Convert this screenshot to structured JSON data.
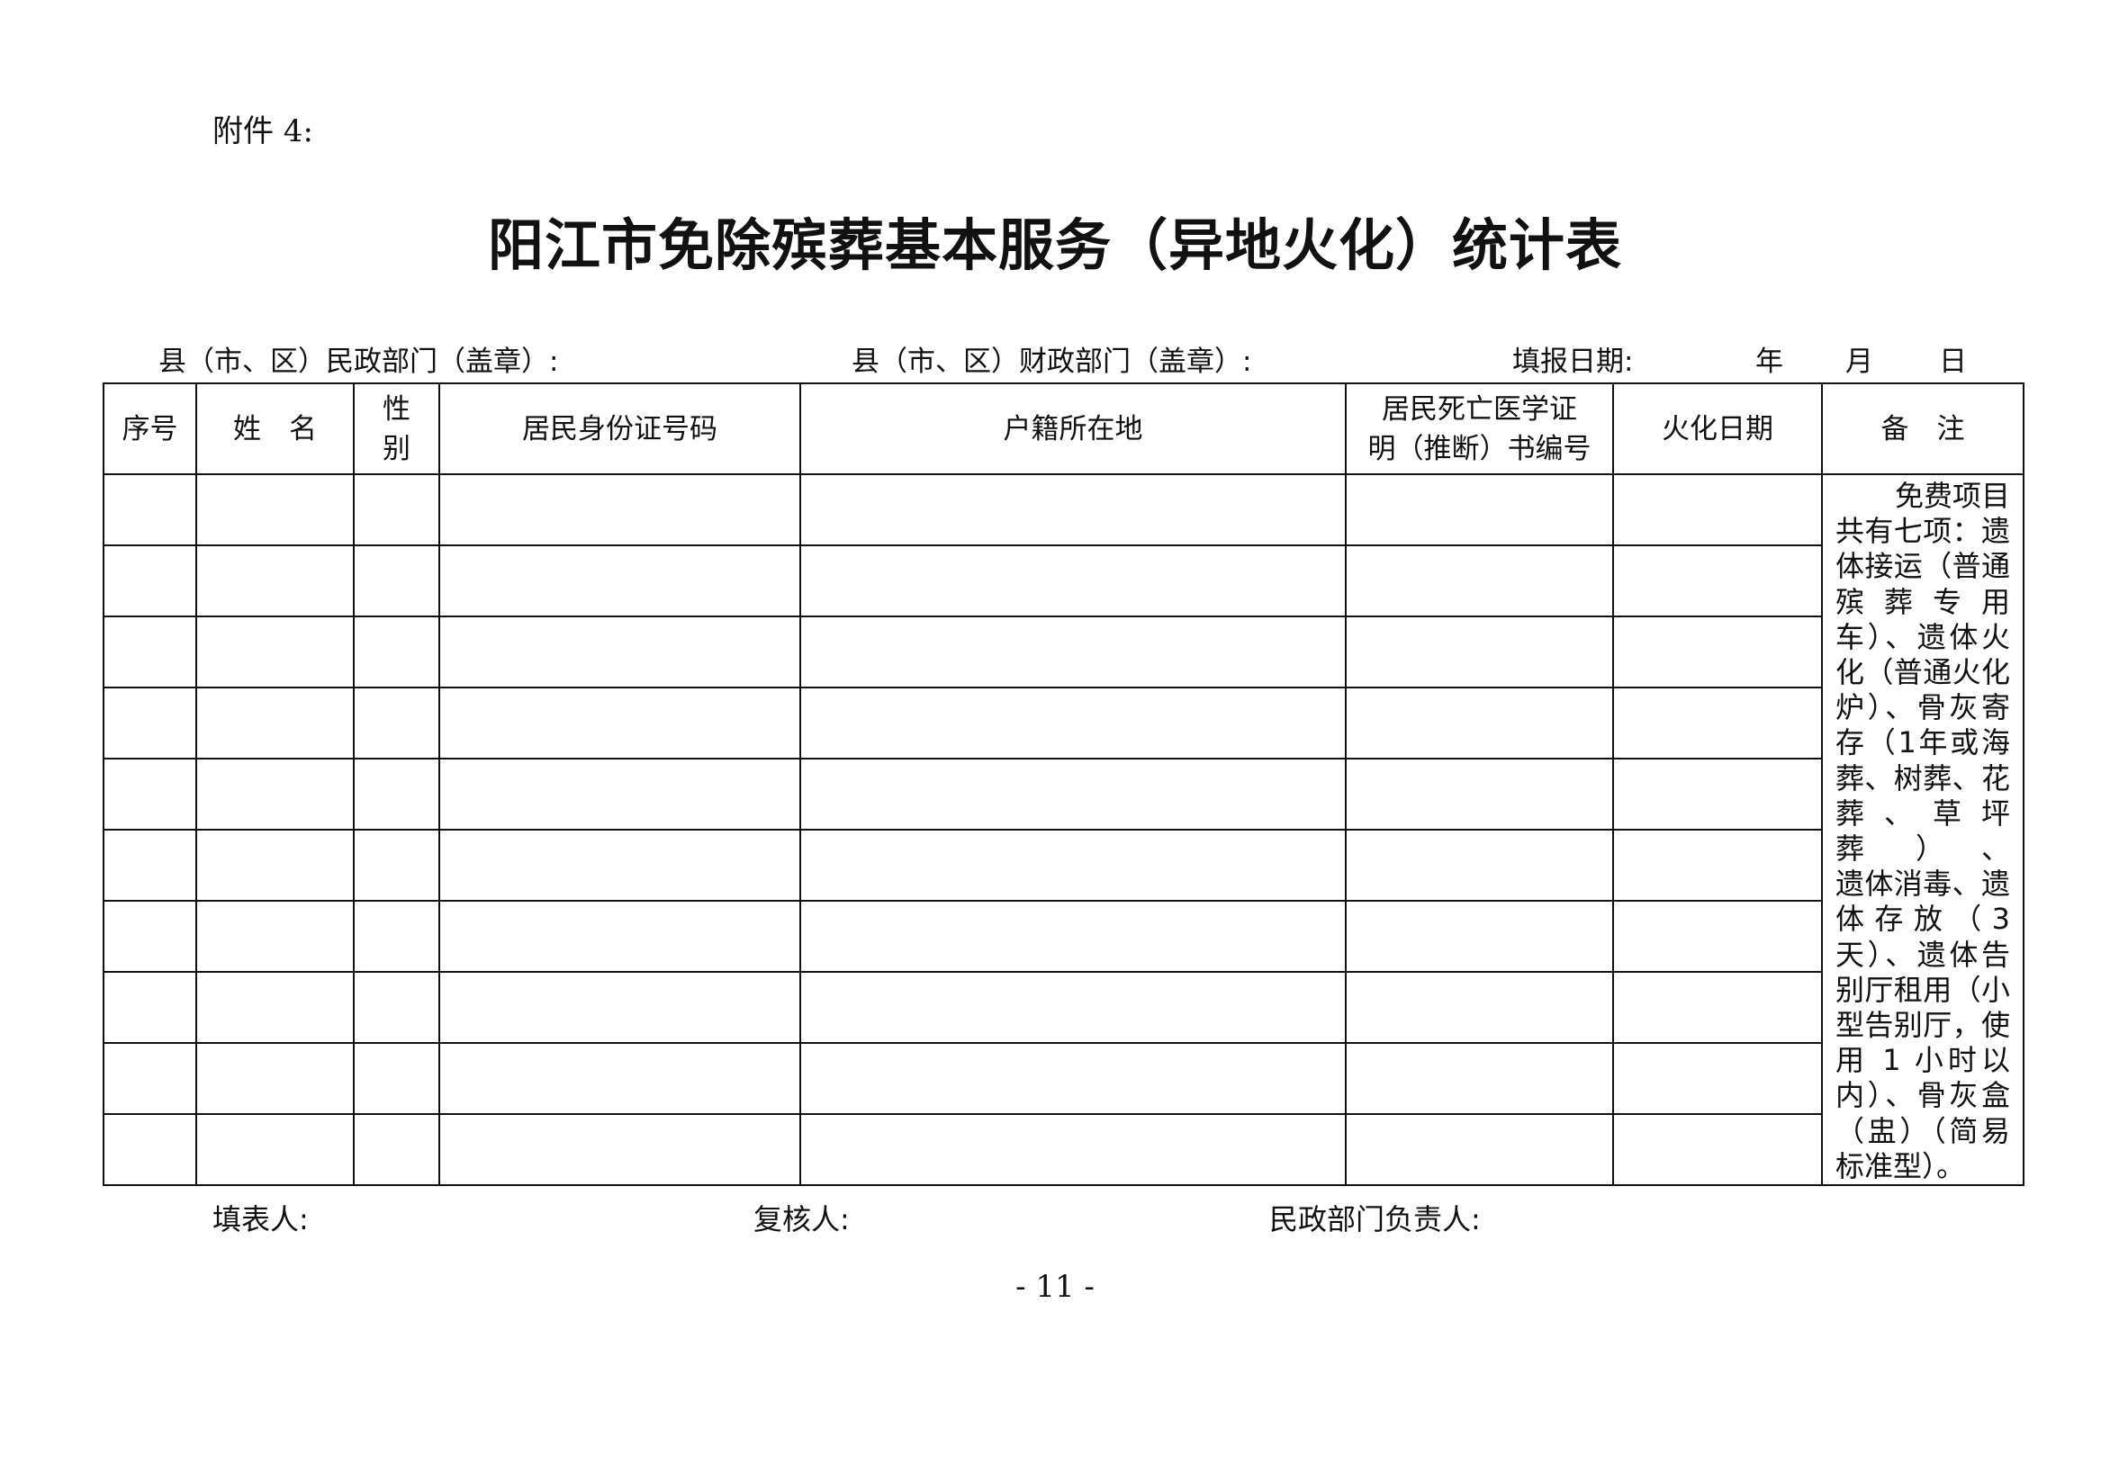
{
  "attachment_label": "附件 4:",
  "title": "阳江市免除殡葬基本服务（异地火化）统计表",
  "subheader": {
    "civil_affairs_seal": "县（市、区）民政部门（盖章）:",
    "finance_seal": "县（市、区）财政部门（盖章）:",
    "fill_date_label": "填报日期:",
    "year": "年",
    "month": "月",
    "day": "日"
  },
  "table": {
    "headers": [
      "序号",
      "姓　名",
      "性\n别",
      "居民身份证号码",
      "户籍所在地",
      "居民死亡医学证\n明（推断）书编号",
      "火化日期",
      "备　注"
    ],
    "row_count": 10,
    "remark_lines": [
      "免费项目",
      "共有七项：遗",
      "体接运（普通",
      "殡 葬 专 用",
      "车）、遗体火",
      "化（普通火化",
      "炉）、骨灰寄",
      "存（1年或海",
      "葬、树葬、花",
      "葬、草坪葬）、",
      "遗体消毒、遗",
      "体 存 放 （ 3",
      "天）、遗体告",
      "别厅租用（小",
      "型告别厅，使",
      "用 1 小时以",
      "内）、骨灰盒",
      "（盅）（简易",
      "标准型）。"
    ]
  },
  "footer": {
    "filler": "填表人:",
    "reviewer": "复核人:",
    "civil_head": "民政部门负责人:"
  },
  "page_number": "- 11 -"
}
